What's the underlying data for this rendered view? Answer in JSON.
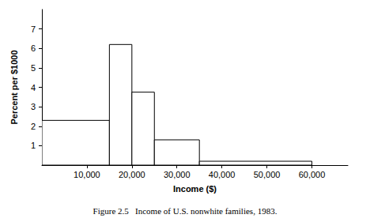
{
  "chart_data": {
    "type": "histogram",
    "title": "Figure 2.5   Income of U.S. nonwhite families, 1983.",
    "x_label": "Income ($)",
    "y_label": "Percent per $1000",
    "bins": [
      0,
      15000,
      20000,
      25000,
      35000,
      60000
    ],
    "values": [
      2.3,
      6.2,
      3.75,
      1.3,
      0.2
    ],
    "color": "#ffffff",
    "xlim": [
      0,
      68000
    ],
    "xticks": [
      {
        "value": 10000,
        "label": "10,000"
      },
      {
        "value": 20000,
        "label": "20,000"
      },
      {
        "value": 30000,
        "label": "30,000"
      },
      {
        "value": 40000,
        "label": "40,000"
      },
      {
        "value": 50000,
        "label": "50,000"
      },
      {
        "value": 60000,
        "label": "60,000"
      }
    ],
    "ylim": [
      0,
      8
    ],
    "yticks": [
      1,
      2,
      3,
      4,
      5,
      6,
      7
    ],
    "grid": false
  }
}
